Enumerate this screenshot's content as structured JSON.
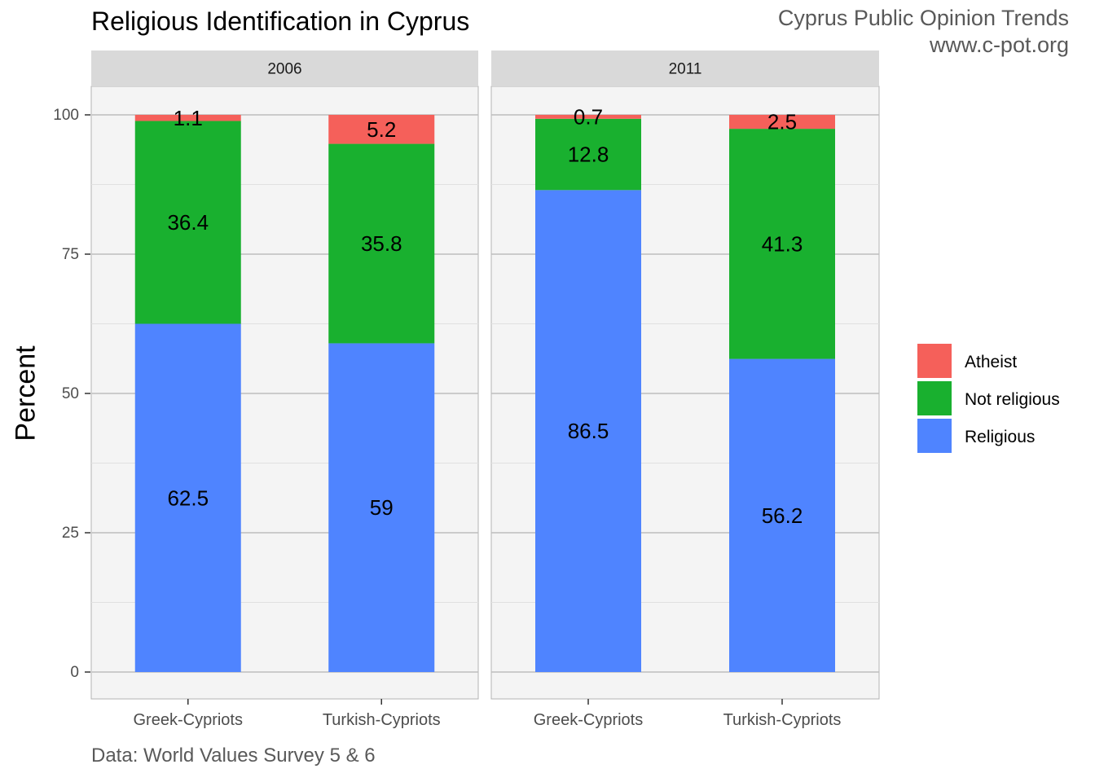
{
  "title": "Religious Identification in Cyprus",
  "credit": {
    "line1": "Cyprus Public Opinion Trends",
    "line2": "www.c-pot.org"
  },
  "caption": "Data: World Values Survey 5 & 6",
  "chart_data": {
    "type": "bar",
    "stacked": true,
    "facets": [
      "2006",
      "2011"
    ],
    "categories": [
      "Greek-Cypriots",
      "Turkish-Cypriots"
    ],
    "series": [
      {
        "name": "Religious",
        "color": "#4f84ff",
        "values": {
          "2006": [
            62.5,
            59
          ],
          "2011": [
            86.5,
            56.2
          ]
        }
      },
      {
        "name": "Not religious",
        "color": "#19b02f",
        "values": {
          "2006": [
            36.4,
            35.8
          ],
          "2011": [
            12.8,
            41.3
          ]
        }
      },
      {
        "name": "Atheist",
        "color": "#f5605a",
        "values": {
          "2006": [
            1.1,
            5.2
          ],
          "2011": [
            0.7,
            2.5
          ]
        }
      }
    ],
    "legend_order": [
      "Atheist",
      "Not religious",
      "Religious"
    ],
    "legend_position": "right",
    "ylabel": "Percent",
    "xlabel": "",
    "ylim": [
      0,
      100
    ],
    "yticks": [
      0,
      25,
      50,
      75,
      100
    ],
    "grid": true
  }
}
